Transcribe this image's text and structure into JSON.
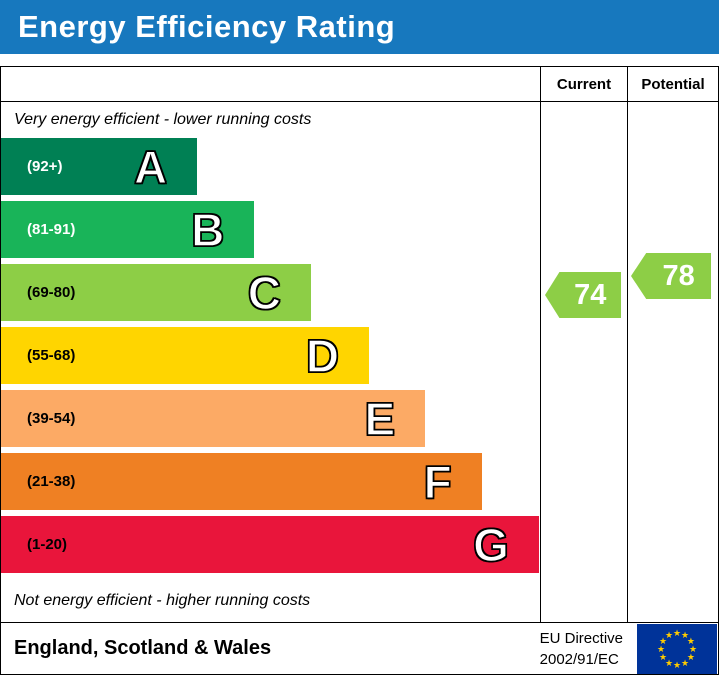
{
  "title": "Energy Efficiency Rating",
  "header": {
    "current_label": "Current",
    "potential_label": "Potential"
  },
  "notes": {
    "top": "Very energy efficient - lower running costs",
    "bottom": "Not energy efficient - higher running costs"
  },
  "footer": {
    "region": "England, Scotland & Wales",
    "directive": [
      "EU Directive",
      "2002/91/EC"
    ]
  },
  "colors": {
    "title_bg": "#1778be",
    "title_text": "#ffffff",
    "table_border": "#000000",
    "eu_flag_bg": "#003399",
    "eu_star": "#ffcc00",
    "rating_arrow": "#8dce46"
  },
  "chart_data": {
    "type": "bar",
    "title": "Energy Efficiency Rating",
    "bands": [
      {
        "letter": "A",
        "range_label": "(92+)",
        "min": 92,
        "max": 100,
        "color": "#008054",
        "width_pct": 36.4,
        "label_color": "#ffffff"
      },
      {
        "letter": "B",
        "range_label": "(81-91)",
        "min": 81,
        "max": 91,
        "color": "#19b459",
        "width_pct": 47.0,
        "label_color": "#ffffff"
      },
      {
        "letter": "C",
        "range_label": "(69-80)",
        "min": 69,
        "max": 80,
        "color": "#8dce46",
        "width_pct": 57.5,
        "label_color": "#000000"
      },
      {
        "letter": "D",
        "range_label": "(55-68)",
        "min": 55,
        "max": 68,
        "color": "#ffd500",
        "width_pct": 68.3,
        "label_color": "#000000"
      },
      {
        "letter": "E",
        "range_label": "(39-54)",
        "min": 39,
        "max": 54,
        "color": "#fcaa65",
        "width_pct": 78.7,
        "label_color": "#000000"
      },
      {
        "letter": "F",
        "range_label": "(21-38)",
        "min": 21,
        "max": 38,
        "color": "#ef8023",
        "width_pct": 89.2,
        "label_color": "#000000"
      },
      {
        "letter": "G",
        "range_label": "(1-20)",
        "min": 1,
        "max": 20,
        "color": "#e9153b",
        "width_pct": 99.8,
        "label_color": "#000000"
      }
    ],
    "current": {
      "value": 74,
      "color": "#8dce46"
    },
    "potential": {
      "value": 78,
      "color": "#8dce46"
    }
  }
}
